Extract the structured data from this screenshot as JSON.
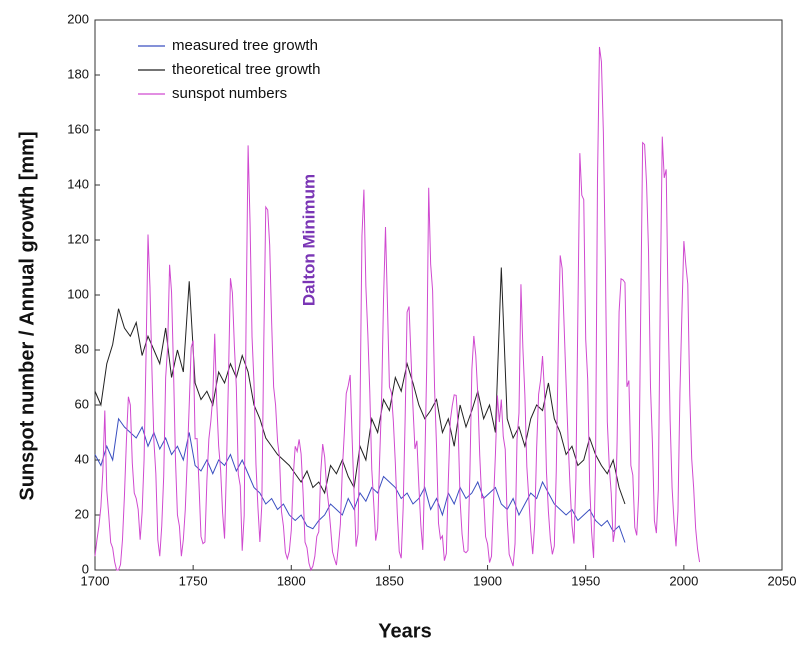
{
  "chart_data": {
    "type": "line",
    "y_label": "Sunspot number / Annual growth [mm]",
    "x_label": "Years",
    "annotation": "Dalton Minimum",
    "xlim": [
      1700,
      2050
    ],
    "xticks": [
      1700,
      1750,
      1800,
      1850,
      1900,
      1950,
      2000,
      2050
    ],
    "ylim": [
      0,
      200
    ],
    "yticks": [
      0,
      20,
      40,
      60,
      80,
      100,
      120,
      140,
      160,
      180,
      200
    ],
    "grid": false,
    "legend": "upper left",
    "series": [
      {
        "name": "measured tree growth",
        "color": "#3a4fc0",
        "x": [
          1700,
          1703,
          1706,
          1709,
          1712,
          1715,
          1718,
          1721,
          1724,
          1727,
          1730,
          1733,
          1736,
          1739,
          1742,
          1745,
          1748,
          1751,
          1754,
          1757,
          1760,
          1763,
          1766,
          1769,
          1772,
          1775,
          1778,
          1781,
          1784,
          1787,
          1790,
          1793,
          1796,
          1799,
          1802,
          1805,
          1808,
          1811,
          1814,
          1817,
          1820,
          1823,
          1826,
          1829,
          1832,
          1835,
          1838,
          1841,
          1844,
          1847,
          1850,
          1853,
          1856,
          1859,
          1862,
          1865,
          1868,
          1871,
          1874,
          1877,
          1880,
          1883,
          1886,
          1889,
          1892,
          1895,
          1898,
          1901,
          1904,
          1907,
          1910,
          1913,
          1916,
          1919,
          1922,
          1925,
          1928,
          1931,
          1934,
          1937,
          1940,
          1943,
          1946,
          1949,
          1952,
          1955,
          1958,
          1961,
          1964,
          1967,
          1970
        ],
        "values": [
          42,
          38,
          45,
          40,
          55,
          52,
          50,
          48,
          52,
          45,
          50,
          44,
          48,
          42,
          45,
          40,
          50,
          38,
          36,
          40,
          35,
          40,
          38,
          42,
          36,
          40,
          35,
          30,
          28,
          24,
          26,
          22,
          24,
          20,
          18,
          20,
          16,
          15,
          18,
          20,
          24,
          22,
          20,
          26,
          22,
          28,
          25,
          30,
          28,
          34,
          32,
          30,
          26,
          28,
          24,
          26,
          30,
          22,
          26,
          20,
          28,
          24,
          30,
          26,
          28,
          32,
          26,
          28,
          30,
          24,
          22,
          26,
          20,
          24,
          28,
          26,
          32,
          28,
          24,
          22,
          20,
          22,
          18,
          20,
          22,
          18,
          16,
          18,
          14,
          16,
          10
        ]
      },
      {
        "name": "theoretical tree growth",
        "color": "#222222",
        "x": [
          1700,
          1703,
          1706,
          1709,
          1712,
          1715,
          1718,
          1721,
          1724,
          1727,
          1730,
          1733,
          1736,
          1739,
          1742,
          1745,
          1748,
          1751,
          1754,
          1757,
          1760,
          1763,
          1766,
          1769,
          1772,
          1775,
          1778,
          1781,
          1784,
          1787,
          1790,
          1793,
          1796,
          1799,
          1802,
          1805,
          1808,
          1811,
          1814,
          1817,
          1820,
          1823,
          1826,
          1829,
          1832,
          1835,
          1838,
          1841,
          1844,
          1847,
          1850,
          1853,
          1856,
          1859,
          1862,
          1865,
          1868,
          1871,
          1874,
          1877,
          1880,
          1883,
          1886,
          1889,
          1892,
          1895,
          1898,
          1901,
          1904,
          1907,
          1910,
          1913,
          1916,
          1919,
          1922,
          1925,
          1928,
          1931,
          1934,
          1937,
          1940,
          1943,
          1946,
          1949,
          1952,
          1955,
          1958,
          1961,
          1964,
          1967,
          1970
        ],
        "values": [
          65,
          60,
          75,
          82,
          95,
          88,
          85,
          90,
          78,
          85,
          80,
          75,
          88,
          70,
          80,
          72,
          105,
          68,
          62,
          65,
          60,
          72,
          68,
          75,
          70,
          78,
          72,
          60,
          55,
          48,
          45,
          42,
          40,
          38,
          35,
          32,
          36,
          30,
          32,
          28,
          38,
          35,
          40,
          34,
          30,
          45,
          40,
          55,
          50,
          62,
          58,
          70,
          65,
          75,
          68,
          60,
          55,
          58,
          62,
          50,
          55,
          45,
          60,
          52,
          58,
          65,
          55,
          60,
          50,
          110,
          55,
          48,
          52,
          45,
          55,
          60,
          58,
          68,
          55,
          50,
          42,
          45,
          38,
          40,
          48,
          42,
          38,
          35,
          40,
          30,
          24
        ]
      },
      {
        "name": "sunspot numbers",
        "color": "#d04ad0",
        "x": [
          1700,
          1701,
          1702,
          1703,
          1704,
          1705,
          1706,
          1707,
          1708,
          1709,
          1710,
          1711,
          1712,
          1713,
          1714,
          1715,
          1716,
          1717,
          1718,
          1719,
          1720,
          1721,
          1722,
          1723,
          1724,
          1725,
          1726,
          1727,
          1728,
          1729,
          1730,
          1731,
          1732,
          1733,
          1734,
          1735,
          1736,
          1737,
          1738,
          1739,
          1740,
          1741,
          1742,
          1743,
          1744,
          1745,
          1746,
          1747,
          1748,
          1749,
          1750,
          1751,
          1752,
          1753,
          1754,
          1755,
          1756,
          1757,
          1758,
          1759,
          1760,
          1761,
          1762,
          1763,
          1764,
          1765,
          1766,
          1767,
          1768,
          1769,
          1770,
          1771,
          1772,
          1773,
          1774,
          1775,
          1776,
          1777,
          1778,
          1779,
          1780,
          1781,
          1782,
          1783,
          1784,
          1785,
          1786,
          1787,
          1788,
          1789,
          1790,
          1791,
          1792,
          1793,
          1794,
          1795,
          1796,
          1797,
          1798,
          1799,
          1800,
          1801,
          1802,
          1803,
          1804,
          1805,
          1806,
          1807,
          1808,
          1809,
          1810,
          1811,
          1812,
          1813,
          1814,
          1815,
          1816,
          1817,
          1818,
          1819,
          1820,
          1821,
          1822,
          1823,
          1824,
          1825,
          1826,
          1827,
          1828,
          1829,
          1830,
          1831,
          1832,
          1833,
          1834,
          1835,
          1836,
          1837,
          1838,
          1839,
          1840,
          1841,
          1842,
          1843,
          1844,
          1845,
          1846,
          1847,
          1848,
          1849,
          1850,
          1851,
          1852,
          1853,
          1854,
          1855,
          1856,
          1857,
          1858,
          1859,
          1860,
          1861,
          1862,
          1863,
          1864,
          1865,
          1866,
          1867,
          1868,
          1869,
          1870,
          1871,
          1872,
          1873,
          1874,
          1875,
          1876,
          1877,
          1878,
          1879,
          1880,
          1881,
          1882,
          1883,
          1884,
          1885,
          1886,
          1887,
          1888,
          1889,
          1890,
          1891,
          1892,
          1893,
          1894,
          1895,
          1896,
          1897,
          1898,
          1899,
          1900,
          1901,
          1902,
          1903,
          1904,
          1905,
          1906,
          1907,
          1908,
          1909,
          1910,
          1911,
          1912,
          1913,
          1914,
          1915,
          1916,
          1917,
          1918,
          1919,
          1920,
          1921,
          1922,
          1923,
          1924,
          1925,
          1926,
          1927,
          1928,
          1929,
          1930,
          1931,
          1932,
          1933,
          1934,
          1935,
          1936,
          1937,
          1938,
          1939,
          1940,
          1941,
          1942,
          1943,
          1944,
          1945,
          1946,
          1947,
          1948,
          1949,
          1950,
          1951,
          1952,
          1953,
          1954,
          1955,
          1956,
          1957,
          1958,
          1959,
          1960,
          1961,
          1962,
          1963,
          1964,
          1965,
          1966,
          1967,
          1968,
          1969,
          1970,
          1971,
          1972,
          1973,
          1974,
          1975,
          1976,
          1977,
          1978,
          1979,
          1980,
          1981,
          1982,
          1983,
          1984,
          1985,
          1986,
          1987,
          1988,
          1989,
          1990,
          1991,
          1992,
          1993,
          1994,
          1995,
          1996,
          1997,
          1998,
          1999,
          2000,
          2001,
          2002,
          2003,
          2004,
          2005,
          2006,
          2007,
          2008
        ],
        "values": [
          5,
          11,
          16,
          23,
          36,
          58,
          29,
          20,
          10,
          8,
          3,
          0,
          0,
          2,
          11,
          27,
          47,
          63,
          60,
          39,
          28,
          26,
          22,
          11,
          21,
          40,
          78,
          122,
          103,
          73,
          47,
          35,
          11,
          5,
          16,
          34,
          70,
          81,
          111,
          101,
          73,
          40,
          20,
          16,
          5,
          11,
          22,
          40,
          60,
          80.9,
          83.4,
          47.7,
          47.8,
          30.7,
          12.2,
          9.6,
          10.2,
          32.4,
          47.6,
          54,
          62.9,
          85.9,
          61.2,
          45.1,
          36.4,
          20.9,
          11.4,
          37.8,
          69.8,
          106.1,
          100.8,
          81.6,
          66.5,
          34.8,
          30.6,
          7,
          19.8,
          92.5,
          154.4,
          125.9,
          84.8,
          68.1,
          38.5,
          22.8,
          10.2,
          24.1,
          82.9,
          132,
          130.9,
          118.1,
          89.9,
          66.6,
          60,
          46.9,
          41,
          21.3,
          16,
          6.4,
          4.1,
          6.8,
          14.5,
          34,
          45,
          43.1,
          47.5,
          42.2,
          28.1,
          10.1,
          8.1,
          2.5,
          0,
          1.4,
          5,
          12.2,
          13.9,
          35.4,
          45.8,
          41.1,
          30.1,
          23.9,
          15.6,
          6.6,
          4,
          1.8,
          8.5,
          16.6,
          36.3,
          49.6,
          64.2,
          67,
          70.9,
          47.8,
          27.5,
          8.5,
          13.2,
          56.9,
          121.5,
          138.3,
          103.2,
          85.7,
          64.6,
          36.7,
          24.2,
          10.7,
          15,
          40.1,
          61.5,
          98.5,
          124.7,
          96.3,
          66.6,
          64.5,
          54.1,
          39,
          20.6,
          6.7,
          4.3,
          22.7,
          54.8,
          93.8,
          95.8,
          77.2,
          59.1,
          44,
          47,
          30.5,
          16.3,
          7.3,
          37.6,
          74,
          139,
          111.2,
          101.6,
          66.2,
          44.7,
          17,
          11.3,
          12.4,
          3.4,
          6,
          32.3,
          54.3,
          59.7,
          63.7,
          63.5,
          52.2,
          25.4,
          13.1,
          6.8,
          6.3,
          7.1,
          35.6,
          73,
          85.1,
          78,
          64,
          41.8,
          26.2,
          26.7,
          12.1,
          9.5,
          2.7,
          5,
          24.4,
          42,
          63.5,
          53.8,
          62,
          48.5,
          43.9,
          18.6,
          5.7,
          3.6,
          1.4,
          9.6,
          47.4,
          57.1,
          103.9,
          80.6,
          63.6,
          37.6,
          26.1,
          14.2,
          5.8,
          16.7,
          44.3,
          63.9,
          69,
          77.8,
          64.9,
          35.7,
          21.2,
          11.1,
          5.7,
          8.7,
          36.1,
          79.7,
          114.4,
          109.6,
          88.8,
          67.8,
          47.5,
          30.6,
          16.3,
          9.6,
          33.2,
          92.6,
          151.6,
          136.3,
          134.7,
          83.9,
          69.4,
          31.5,
          13.9,
          4.4,
          38,
          141.7,
          190.2,
          184.8,
          159,
          112.3,
          53.9,
          37.6,
          27.9,
          10.2,
          15.1,
          47,
          93.8,
          105.9,
          105.5,
          104.5,
          66.6,
          68.9,
          38,
          34.5,
          15.5,
          12.6,
          27.5,
          92.5,
          155.4,
          154.7,
          140.5,
          115.9,
          66.6,
          45.9,
          17.9,
          13.4,
          29.4,
          100.2,
          157.6,
          142.6,
          145.7,
          94.3,
          54.6,
          29.9,
          17.5,
          8.6,
          21.5,
          64.3,
          93.3,
          119.6,
          111,
          104,
          63.7,
          40.4,
          29.8,
          15.2,
          7.5,
          2.9
        ]
      }
    ]
  }
}
